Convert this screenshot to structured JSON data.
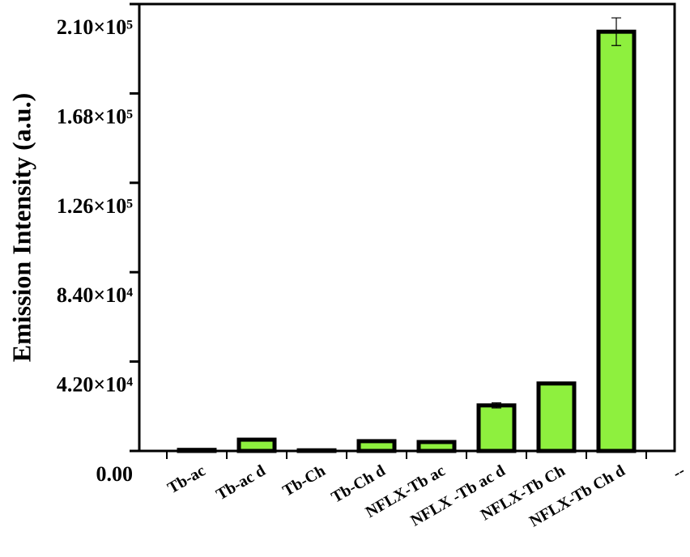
{
  "chart_data": {
    "type": "bar",
    "y_label": "Emission Intensity (a.u.)",
    "categories": [
      "Tb-ac",
      "Tb-ac d",
      "Tb-Ch",
      "Tb-Ch d",
      "NFLX-Tb ac",
      "NFLX -Tb ac d",
      "NFLX-Tb Ch",
      "NFLX-Tb Ch d",
      "--"
    ],
    "values": [
      500,
      5300,
      300,
      4600,
      4200,
      21400,
      31700,
      197000,
      null
    ],
    "errors": [
      100,
      300,
      100,
      200,
      200,
      1200,
      500,
      6500,
      null
    ],
    "color": "#8ef03e",
    "ylim": [
      0,
      210000
    ],
    "yticks": [
      {
        "value": 0,
        "label": "0.00"
      },
      {
        "value": 42000,
        "label": "4.20×10⁴"
      },
      {
        "value": 84000,
        "label": "8.40×10⁴"
      },
      {
        "value": 126000,
        "label": "1.26×10⁵"
      },
      {
        "value": 168000,
        "label": "1.68×10⁵"
      },
      {
        "value": 210000,
        "label": "2.10×10⁵"
      }
    ]
  }
}
